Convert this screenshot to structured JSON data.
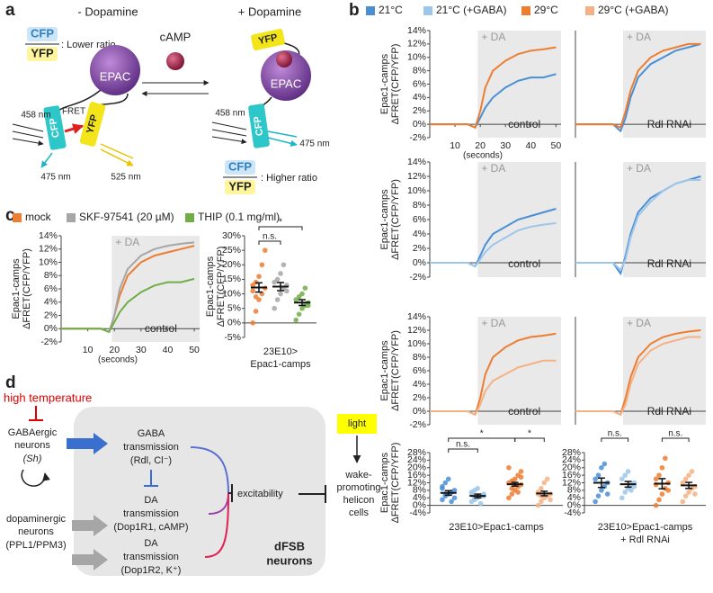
{
  "panel_labels": {
    "a": "a",
    "b": "b",
    "c": "c",
    "d": "d"
  },
  "panel_a": {
    "minus_da": "- Dopamine",
    "plus_da": "+ Dopamine",
    "cfp": "CFP",
    "yfp": "YFP",
    "lower_ratio": ": Lower ratio",
    "higher_ratio": ": Higher ratio",
    "camp": "cAMP",
    "epac": "EPAC",
    "ex_nm": "458 nm",
    "fret": "FRET",
    "cfp_nm": "475 nm",
    "yfp_nm": "525 nm"
  },
  "panel_d": {
    "high_temperature": "high temperature",
    "gaba_neurons": [
      "GABAergic",
      "neurons",
      "(Sh)"
    ],
    "da_neurons": [
      "dopaminergic",
      "neurons",
      "(PPL1/PPM3)"
    ],
    "gaba_transmission": [
      "GABA",
      "transmission",
      "(Rdl, Cl⁻)"
    ],
    "da1_transmission": [
      "DA",
      "transmission",
      "(Dop1R1, cAMP)"
    ],
    "da2_transmission": [
      "DA",
      "transmission",
      "(Dop1R2, K⁺)"
    ],
    "excitability": "excitability",
    "light": "light",
    "target": [
      "wake-",
      "promoting",
      "helicon",
      "cells"
    ],
    "dfsb": [
      "dFSB",
      "neurons"
    ]
  },
  "legends": {
    "b": [
      {
        "name": "21°C",
        "color": "#4a8fd6"
      },
      {
        "name": "21°C (+GABA)",
        "color": "#9cc6ea"
      },
      {
        "name": "29°C",
        "color": "#ed7d31"
      },
      {
        "name": "29°C (+GABA)",
        "color": "#f4b183"
      }
    ],
    "c": [
      {
        "name": "mock",
        "color": "#ed7d31"
      },
      {
        "name": "SKF-97541 (20 µM)",
        "color": "#a6a6a6"
      },
      {
        "name": "THIP (0.1 mg/ml)",
        "color": "#70ad47"
      }
    ]
  },
  "chart_data": [
    {
      "type": "line",
      "x": [
        0,
        5,
        10,
        15,
        18,
        20,
        22,
        25,
        30,
        35,
        40,
        45,
        50
      ],
      "xlim": [
        0,
        52
      ],
      "xticks": [
        10,
        20,
        30,
        40,
        50
      ],
      "xlabel": "(seconds)",
      "ylim": [
        -2,
        14
      ],
      "yticks": [
        {
          "value": -2,
          "label": "-2%"
        },
        {
          "value": 0,
          "label": "0%"
        },
        {
          "value": 2,
          "label": "2%"
        },
        {
          "value": 4,
          "label": "4%"
        },
        {
          "value": 6,
          "label": "6%"
        },
        {
          "value": 8,
          "label": "8%"
        },
        {
          "value": 10,
          "label": "10%"
        },
        {
          "value": 12,
          "label": "12%"
        },
        {
          "value": 14,
          "label": "14%"
        }
      ],
      "ylabel": [
        "Epac1-camps",
        "ΔFRET(CFP/YFP)"
      ],
      "shade": [
        19,
        52
      ],
      "shade_label": "+ DA",
      "annotation": "control",
      "series": [
        {
          "color": "#4a8fd6",
          "values": [
            0,
            0,
            0,
            0,
            -0.5,
            1,
            2.5,
            4,
            5.5,
            6.5,
            7,
            7,
            7.5
          ]
        },
        {
          "color": "#ed7d31",
          "values": [
            0,
            0,
            0,
            0,
            -0.5,
            2,
            5.5,
            8,
            9.5,
            10.5,
            11,
            11.2,
            11.5
          ]
        }
      ]
    },
    {
      "type": "line",
      "x": [
        0,
        5,
        10,
        15,
        18,
        20,
        22,
        25,
        30,
        35,
        40,
        45,
        50
      ],
      "xlim": [
        0,
        52
      ],
      "ylim": [
        -2,
        14
      ],
      "shade": [
        19,
        52
      ],
      "shade_label": "+ DA",
      "annotation": "Rdl RNAi",
      "series": [
        {
          "color": "#4a8fd6",
          "values": [
            0,
            0,
            0,
            0,
            -1,
            1,
            4,
            7,
            9,
            10,
            11,
            11.5,
            12
          ]
        },
        {
          "color": "#ed7d31",
          "values": [
            0,
            0,
            0,
            0,
            -0.5,
            2,
            5,
            8,
            10,
            11,
            11.5,
            12,
            12
          ]
        }
      ]
    },
    {
      "type": "line",
      "x": [
        0,
        5,
        10,
        15,
        18,
        20,
        22,
        25,
        30,
        35,
        40,
        45,
        50
      ],
      "xlim": [
        0,
        52
      ],
      "ylim": [
        -2,
        14
      ],
      "yticks": [
        {
          "value": -2,
          "label": "-2%"
        },
        {
          "value": 0,
          "label": "0%"
        },
        {
          "value": 2,
          "label": "2%"
        },
        {
          "value": 4,
          "label": "4%"
        },
        {
          "value": 6,
          "label": "6%"
        },
        {
          "value": 8,
          "label": "8%"
        },
        {
          "value": 10,
          "label": "10%"
        },
        {
          "value": 12,
          "label": "12%"
        },
        {
          "value": 14,
          "label": "14%"
        }
      ],
      "ylabel": [
        "Epac1-camps",
        "ΔFRET(CFP/YFP)"
      ],
      "shade": [
        19,
        52
      ],
      "shade_label": "+ DA",
      "annotation": "control",
      "series": [
        {
          "color": "#4a8fd6",
          "values": [
            0,
            0,
            0,
            0,
            -0.5,
            1,
            2.5,
            4,
            5,
            6,
            6.5,
            7,
            7.5
          ]
        },
        {
          "color": "#9cc6ea",
          "values": [
            0,
            0,
            0,
            0,
            -0.5,
            0.5,
            1.5,
            2.5,
            3.5,
            4.5,
            5,
            5.3,
            5.5
          ]
        }
      ]
    },
    {
      "type": "line",
      "x": [
        0,
        5,
        10,
        15,
        18,
        20,
        22,
        25,
        30,
        35,
        40,
        45,
        50
      ],
      "xlim": [
        0,
        52
      ],
      "ylim": [
        -2,
        14
      ],
      "shade": [
        19,
        52
      ],
      "shade_label": "+ DA",
      "annotation": "Rdl RNAi",
      "series": [
        {
          "color": "#4a8fd6",
          "values": [
            0,
            0,
            0,
            0,
            -1.5,
            1,
            4,
            7,
            9,
            10,
            11,
            11.5,
            12
          ]
        },
        {
          "color": "#9cc6ea",
          "values": [
            0,
            0,
            0,
            0,
            -1,
            0.5,
            3.5,
            6.5,
            8.5,
            10,
            11,
            11.5,
            11.5
          ]
        }
      ]
    },
    {
      "type": "line",
      "x": [
        0,
        5,
        10,
        15,
        18,
        20,
        22,
        25,
        30,
        35,
        40,
        45,
        50
      ],
      "xlim": [
        0,
        52
      ],
      "ylim": [
        -2,
        14
      ],
      "yticks": [
        {
          "value": -2,
          "label": "-2%"
        },
        {
          "value": 0,
          "label": "0%"
        },
        {
          "value": 2,
          "label": "2%"
        },
        {
          "value": 4,
          "label": "4%"
        },
        {
          "value": 6,
          "label": "6%"
        },
        {
          "value": 8,
          "label": "8%"
        },
        {
          "value": 10,
          "label": "10%"
        },
        {
          "value": 12,
          "label": "12%"
        },
        {
          "value": 14,
          "label": "14%"
        }
      ],
      "ylabel": [
        "Epac1-camps",
        "ΔFRET(CFP/YFP)"
      ],
      "shade": [
        19,
        52
      ],
      "shade_label": "+ DA",
      "annotation": "control",
      "series": [
        {
          "color": "#ed7d31",
          "values": [
            0,
            0,
            0,
            0,
            -0.5,
            2,
            5.5,
            8,
            9.5,
            10.5,
            11,
            11.2,
            11.5
          ]
        },
        {
          "color": "#f4b183",
          "values": [
            0,
            0,
            0,
            0,
            -0.5,
            1,
            3,
            4.5,
            5.5,
            6.5,
            7,
            7.5,
            7.5
          ]
        }
      ]
    },
    {
      "type": "line",
      "x": [
        0,
        5,
        10,
        15,
        18,
        20,
        22,
        25,
        30,
        35,
        40,
        45,
        50
      ],
      "xlim": [
        0,
        52
      ],
      "ylim": [
        -2,
        14
      ],
      "shade": [
        19,
        52
      ],
      "shade_label": "+ DA",
      "annotation": "Rdl RNAi",
      "series": [
        {
          "color": "#ed7d31",
          "values": [
            0,
            0,
            0,
            0,
            -0.5,
            2,
            5,
            8,
            10,
            11,
            11.5,
            11.8,
            12
          ]
        },
        {
          "color": "#f4b183",
          "values": [
            0,
            0,
            0,
            0,
            -0.5,
            1,
            4,
            7,
            9,
            10,
            10.5,
            11,
            11
          ]
        }
      ]
    },
    {
      "type": "dot",
      "ylim": [
        -4,
        28
      ],
      "yticks": [
        {
          "value": -4,
          "label": "-4%"
        },
        {
          "value": 0,
          "label": "0%"
        },
        {
          "value": 4,
          "label": "4%"
        },
        {
          "value": 8,
          "label": "8%"
        },
        {
          "value": 12,
          "label": "12%"
        },
        {
          "value": 16,
          "label": "16%"
        },
        {
          "value": 20,
          "label": "20%"
        },
        {
          "value": 24,
          "label": "24%"
        },
        {
          "value": 28,
          "label": "28%"
        }
      ],
      "ylabel": [
        "Epac1-camps",
        "ΔFRET(CFP/YFP)"
      ],
      "xlabel": [
        "23E10>Epac1-camps"
      ],
      "groups": [
        {
          "color": "#4a8fd6",
          "points": [
            3,
            5,
            6,
            7,
            8,
            10,
            12,
            14,
            2,
            4,
            9,
            6
          ],
          "mean": 6.6,
          "sem": 1.2
        },
        {
          "color": "#9cc6ea",
          "points": [
            2,
            3,
            4,
            5,
            6,
            7,
            8,
            9,
            1,
            5,
            6,
            4
          ],
          "mean": 5,
          "sem": 1
        },
        {
          "color": "#ed7d31",
          "points": [
            4,
            6,
            8,
            10,
            11,
            12,
            13,
            14,
            16,
            18,
            20,
            9,
            11,
            7,
            15
          ],
          "mean": 11.2,
          "sem": 1
        },
        {
          "color": "#f4b183",
          "points": [
            0,
            2,
            4,
            5,
            6,
            7,
            9,
            12,
            14,
            3,
            6,
            5
          ],
          "mean": 6.3,
          "sem": 1.2
        }
      ],
      "brackets": [
        {
          "groups": [
            0,
            1
          ],
          "label": "n.s."
        },
        {
          "groups": [
            0,
            2
          ],
          "label": "*"
        },
        {
          "groups": [
            2,
            3
          ],
          "label": "*"
        }
      ]
    },
    {
      "type": "dot",
      "ylim": [
        -4,
        28
      ],
      "yticks": [
        {
          "value": -4,
          "label": "-4%"
        },
        {
          "value": 0,
          "label": "0%"
        },
        {
          "value": 4,
          "label": "4%"
        },
        {
          "value": 8,
          "label": "8%"
        },
        {
          "value": 12,
          "label": "12%"
        },
        {
          "value": 16,
          "label": "16%"
        },
        {
          "value": 20,
          "label": "20%"
        },
        {
          "value": 24,
          "label": "24%"
        },
        {
          "value": 28,
          "label": "28%"
        }
      ],
      "xlabel": [
        "23E10>Epac1-camps",
        "+ Rdl RNAi"
      ],
      "groups": [
        {
          "color": "#4a8fd6",
          "points": [
            2,
            5,
            8,
            10,
            12,
            14,
            16,
            20,
            22,
            6
          ],
          "mean": 12,
          "sem": 2.5
        },
        {
          "color": "#9cc6ea",
          "points": [
            4,
            7,
            9,
            11,
            12,
            14,
            16,
            18,
            8,
            10
          ],
          "mean": 11.2,
          "sem": 1.5
        },
        {
          "color": "#ed7d31",
          "points": [
            0,
            3,
            6,
            9,
            12,
            14,
            16,
            20,
            25,
            8,
            11
          ],
          "mean": 11.5,
          "sem": 2.7
        },
        {
          "color": "#f4b183",
          "points": [
            2,
            5,
            7,
            9,
            10,
            12,
            14,
            16,
            18,
            6
          ],
          "mean": 10.6,
          "sem": 1.6
        }
      ],
      "brackets": [
        {
          "groups": [
            0,
            1
          ],
          "label": "n.s."
        },
        {
          "groups": [
            2,
            3
          ],
          "label": "n.s."
        }
      ]
    },
    {
      "type": "line",
      "x": [
        0,
        5,
        10,
        15,
        18,
        20,
        22,
        25,
        30,
        35,
        40,
        45,
        50
      ],
      "xlim": [
        0,
        52
      ],
      "xticks": [
        10,
        20,
        30,
        40,
        50
      ],
      "xlabel": "(seconds)",
      "ylim": [
        -2,
        14
      ],
      "yticks": [
        {
          "value": -2,
          "label": "-2%"
        },
        {
          "value": 0,
          "label": "0%"
        },
        {
          "value": 2,
          "label": "2%"
        },
        {
          "value": 4,
          "label": "4%"
        },
        {
          "value": 6,
          "label": "6%"
        },
        {
          "value": 8,
          "label": "8%"
        },
        {
          "value": 10,
          "label": "10%"
        },
        {
          "value": 12,
          "label": "12%"
        },
        {
          "value": 14,
          "label": "14%"
        }
      ],
      "ylabel": [
        "Epac1-camps",
        "ΔFRET(CFP/YFP)"
      ],
      "shade": [
        19,
        52
      ],
      "shade_label": "+ DA",
      "annotation": "control",
      "series": [
        {
          "color": "#ed7d31",
          "values": [
            0,
            0,
            0,
            0,
            -0.5,
            2,
            5,
            8,
            10,
            11,
            11.5,
            12,
            12.5
          ]
        },
        {
          "color": "#a6a6a6",
          "values": [
            0,
            0,
            0,
            0,
            -0.5,
            2,
            6,
            9,
            11,
            12,
            12.5,
            12.8,
            13
          ]
        },
        {
          "color": "#70ad47",
          "values": [
            0,
            0,
            0,
            0,
            -0.5,
            1,
            2.5,
            4,
            5.5,
            6.5,
            7,
            7,
            7.5
          ]
        }
      ]
    },
    {
      "type": "dot",
      "ylim": [
        -5,
        30
      ],
      "yticks": [
        {
          "value": -5,
          "label": "-5%"
        },
        {
          "value": 0,
          "label": "0%"
        },
        {
          "value": 5,
          "label": "5%"
        },
        {
          "value": 10,
          "label": "10%"
        },
        {
          "value": 15,
          "label": "15%"
        },
        {
          "value": 20,
          "label": "20%"
        },
        {
          "value": 25,
          "label": "25%"
        },
        {
          "value": 30,
          "label": "30%"
        }
      ],
      "ylabel": [
        "Epac1-camps",
        "ΔFRET(CFP/YFP)"
      ],
      "xlabel": [
        "23E10>",
        "Epac1-camps"
      ],
      "groups": [
        {
          "color": "#ed7d31",
          "points": [
            0,
            4,
            8,
            10,
            12,
            13,
            14,
            16,
            20,
            25,
            11,
            9
          ],
          "mean": 12.2,
          "sem": 1.6
        },
        {
          "color": "#a6a6a6",
          "points": [
            5,
            8,
            10,
            12,
            13,
            14,
            15,
            17,
            20,
            11
          ],
          "mean": 12.5,
          "sem": 1.4
        },
        {
          "color": "#70ad47",
          "points": [
            1,
            3,
            5,
            6,
            7,
            8,
            9,
            10,
            12,
            6
          ],
          "mean": 7,
          "sem": 1
        }
      ],
      "brackets": [
        {
          "groups": [
            0,
            1
          ],
          "label": "n.s."
        },
        {
          "groups": [
            0,
            2
          ],
          "label": "*"
        }
      ]
    }
  ]
}
